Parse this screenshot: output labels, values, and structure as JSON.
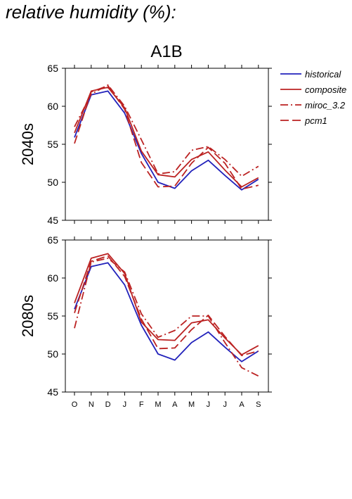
{
  "page_title": "relative humidity (%):",
  "chart_data": {
    "type": "line",
    "title": "A1B",
    "categories": [
      "O",
      "N",
      "D",
      "J",
      "F",
      "M",
      "A",
      "M",
      "J",
      "J",
      "A",
      "S"
    ],
    "ylim": [
      45,
      65
    ],
    "yticks": [
      45,
      50,
      55,
      60,
      65
    ],
    "grid": false,
    "legend_position": "right",
    "series_styles": [
      {
        "name": "historical",
        "color": "#2222bb",
        "dash": "none"
      },
      {
        "name": "composite",
        "color": "#bb2222",
        "dash": "none"
      },
      {
        "name": "miroc_3.2",
        "color": "#bb2222",
        "dash": "dashdot"
      },
      {
        "name": "pcm1",
        "color": "#bb2222",
        "dash": "longdash"
      }
    ],
    "panels": [
      {
        "ylabel": "2040s",
        "series": [
          {
            "name": "historical",
            "values": [
              55.9,
              61.5,
              62.0,
              59.1,
              53.8,
              50.0,
              49.2,
              51.5,
              52.9,
              50.9,
              49.0,
              50.4
            ]
          },
          {
            "name": "composite",
            "values": [
              56.5,
              62.0,
              62.5,
              59.8,
              54.1,
              51.0,
              50.7,
              53.0,
              54.0,
              51.6,
              49.4,
              50.6
            ]
          },
          {
            "name": "miroc_3.2",
            "values": [
              57.3,
              61.6,
              62.8,
              60.0,
              55.6,
              51.1,
              51.4,
              54.2,
              54.7,
              53.0,
              50.8,
              52.1
            ]
          },
          {
            "name": "pcm1",
            "values": [
              55.1,
              61.9,
              62.7,
              59.6,
              52.6,
              49.4,
              49.5,
              52.5,
              54.6,
              52.5,
              49.1,
              49.6
            ]
          }
        ]
      },
      {
        "ylabel": "2080s",
        "series": [
          {
            "name": "historical",
            "values": [
              55.9,
              61.5,
              62.0,
              59.1,
              53.8,
              50.0,
              49.2,
              51.5,
              52.9,
              50.9,
              49.0,
              50.4
            ]
          },
          {
            "name": "composite",
            "values": [
              56.7,
              62.6,
              63.2,
              60.6,
              54.2,
              51.9,
              51.8,
              54.1,
              54.5,
              52.1,
              49.9,
              51.1
            ]
          },
          {
            "name": "miroc_3.2",
            "values": [
              53.4,
              62.1,
              62.6,
              60.8,
              55.3,
              52.2,
              53.1,
              55.0,
              55.0,
              51.5,
              48.2,
              47.1
            ]
          },
          {
            "name": "pcm1",
            "values": [
              55.4,
              62.2,
              62.9,
              60.2,
              54.6,
              50.7,
              50.8,
              53.2,
              55.1,
              52.3,
              49.8,
              50.4
            ]
          }
        ]
      }
    ]
  }
}
